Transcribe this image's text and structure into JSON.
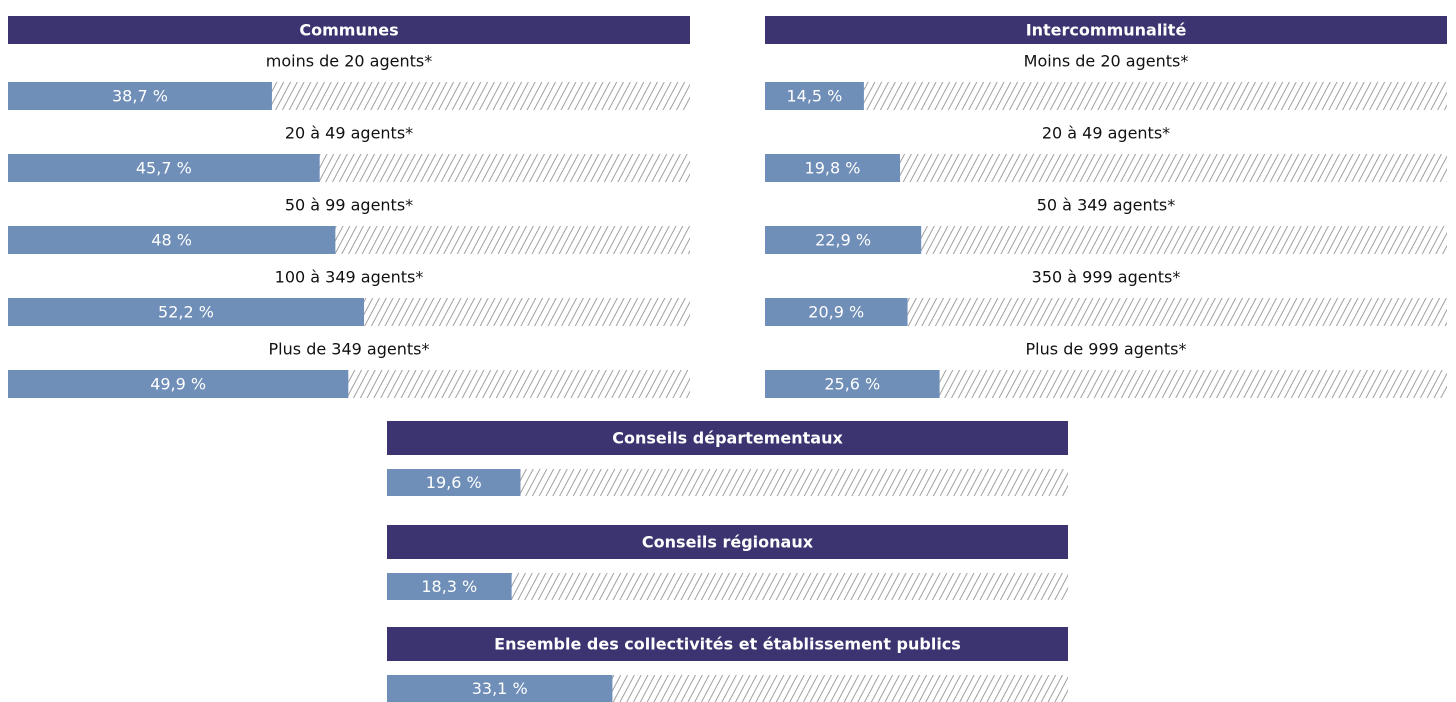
{
  "chart_data": [
    {
      "type": "progress",
      "title": "Communes",
      "color": "#6f8eb8",
      "header_color": "#3b3470",
      "xlim": [
        0,
        100
      ],
      "categories": [
        "moins de 20 agents*",
        "20 à 49 agents*",
        "50 à 99 agents*",
        "100 à 349 agents*",
        "Plus de 349 agents*"
      ],
      "values": [
        38.7,
        45.7,
        48,
        52.2,
        49.9
      ],
      "value_labels": [
        "38,7 %",
        "45,7 %",
        "48 %",
        "52,2 %",
        "49,9 %"
      ]
    },
    {
      "type": "progress",
      "title": "Intercommunalité",
      "color": "#6f8eb8",
      "header_color": "#3b3470",
      "xlim": [
        0,
        100
      ],
      "categories": [
        "Moins de 20 agents*",
        "20 à 49 agents*",
        "50 à 349 agents*",
        "350 à 999 agents*",
        "Plus de 999 agents*"
      ],
      "values": [
        14.5,
        19.8,
        22.9,
        20.9,
        25.6
      ],
      "value_labels": [
        "14,5 %",
        "19,8 %",
        "22,9 %",
        "20,9 %",
        "25,6 %"
      ]
    },
    {
      "type": "progress",
      "title": "Conseils départementaux",
      "color": "#6f8eb8",
      "header_color": "#3b3470",
      "xlim": [
        0,
        100
      ],
      "values": [
        19.6
      ],
      "value_labels": [
        "19,6 %"
      ]
    },
    {
      "type": "progress",
      "title": "Conseils régionaux",
      "color": "#6f8eb8",
      "header_color": "#3b3470",
      "xlim": [
        0,
        100
      ],
      "values": [
        18.3
      ],
      "value_labels": [
        "18,3 %"
      ]
    },
    {
      "type": "progress",
      "title": "Ensemble des collectivités et établissement publics",
      "color": "#6f8eb8",
      "header_color": "#3b3470",
      "xlim": [
        0,
        100
      ],
      "values": [
        33.1
      ],
      "value_labels": [
        "33,1 %"
      ]
    }
  ]
}
